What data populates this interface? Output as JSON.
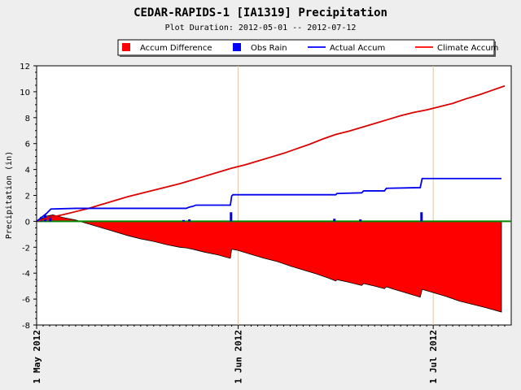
{
  "chart_data": {
    "type": "line",
    "title": "CEDAR-RAPIDS-1 [IA1319] Precipitation",
    "subtitle": "Plot Duration: 2012-05-01 -- 2012-07-12",
    "ylabel": "Precipitation (in)",
    "xlabel": "",
    "x_range_days": [
      0,
      73
    ],
    "ylim": [
      -8,
      12
    ],
    "yticks": [
      -8,
      -6,
      -4,
      -2,
      0,
      2,
      4,
      6,
      8,
      10,
      12
    ],
    "xticks": [
      {
        "day": 0,
        "label": "1 May 2012"
      },
      {
        "day": 31,
        "label": "1 Jun 2012"
      },
      {
        "day": 61,
        "label": "1 Jul 2012"
      }
    ],
    "legend": {
      "placement": "top-right",
      "entries": [
        {
          "name": "Accum Difference",
          "color": "#ff0000",
          "kind": "box"
        },
        {
          "name": "Obs Rain",
          "color": "#0000ff",
          "kind": "box"
        },
        {
          "name": "Actual Accum",
          "color": "#0000ff",
          "kind": "line"
        },
        {
          "name": "Climate Accum",
          "color": "#ff0000",
          "kind": "line"
        }
      ]
    },
    "series": [
      {
        "name": "Climate Accum",
        "color": "#dd0000",
        "points": [
          [
            0,
            0
          ],
          [
            2,
            0.3
          ],
          [
            4,
            0.5
          ],
          [
            6,
            0.75
          ],
          [
            8,
            1.0
          ],
          [
            10,
            1.3
          ],
          [
            12,
            1.6
          ],
          [
            14,
            1.9
          ],
          [
            16,
            2.15
          ],
          [
            18,
            2.4
          ],
          [
            20,
            2.65
          ],
          [
            22,
            2.9
          ],
          [
            24,
            3.2
          ],
          [
            26,
            3.5
          ],
          [
            28,
            3.8
          ],
          [
            30,
            4.1
          ],
          [
            32,
            4.35
          ],
          [
            34,
            4.65
          ],
          [
            36,
            4.95
          ],
          [
            38,
            5.25
          ],
          [
            40,
            5.6
          ],
          [
            42,
            5.95
          ],
          [
            44,
            6.35
          ],
          [
            46,
            6.7
          ],
          [
            48,
            6.95
          ],
          [
            50,
            7.25
          ],
          [
            52,
            7.55
          ],
          [
            54,
            7.85
          ],
          [
            56,
            8.15
          ],
          [
            58,
            8.4
          ],
          [
            60,
            8.6
          ],
          [
            62,
            8.85
          ],
          [
            64,
            9.1
          ],
          [
            66,
            9.45
          ],
          [
            68,
            9.75
          ],
          [
            70,
            10.1
          ],
          [
            72,
            10.45
          ]
        ]
      },
      {
        "name": "Actual Accum",
        "color": "#0000ee",
        "points": [
          [
            0,
            0
          ],
          [
            0.5,
            0.2
          ],
          [
            1.5,
            0.6
          ],
          [
            2.2,
            0.95
          ],
          [
            6,
            1.0
          ],
          [
            23,
            1.0
          ],
          [
            23.5,
            1.1
          ],
          [
            24,
            1.15
          ],
          [
            24.5,
            1.25
          ],
          [
            29.8,
            1.25
          ],
          [
            30,
            1.95
          ],
          [
            30.2,
            2.05
          ],
          [
            46,
            2.05
          ],
          [
            46.2,
            2.15
          ],
          [
            50,
            2.2
          ],
          [
            50.3,
            2.35
          ],
          [
            53.5,
            2.35
          ],
          [
            53.8,
            2.55
          ],
          [
            59,
            2.6
          ],
          [
            59.3,
            3.3
          ],
          [
            71.5,
            3.3
          ]
        ]
      },
      {
        "name": "Accum Difference",
        "color": "#ff0000",
        "points": [
          [
            0,
            0
          ],
          [
            1.5,
            0.4
          ],
          [
            2.5,
            0.5
          ],
          [
            4,
            0.3
          ],
          [
            6,
            0.1
          ],
          [
            8,
            -0.2
          ],
          [
            10,
            -0.5
          ],
          [
            12,
            -0.8
          ],
          [
            14,
            -1.1
          ],
          [
            16,
            -1.35
          ],
          [
            18,
            -1.55
          ],
          [
            20,
            -1.8
          ],
          [
            22,
            -2.0
          ],
          [
            23,
            -2.05
          ],
          [
            24,
            -2.15
          ],
          [
            26,
            -2.4
          ],
          [
            28,
            -2.6
          ],
          [
            29,
            -2.75
          ],
          [
            29.8,
            -2.85
          ],
          [
            30,
            -2.15
          ],
          [
            31,
            -2.25
          ],
          [
            33,
            -2.55
          ],
          [
            35,
            -2.85
          ],
          [
            37,
            -3.1
          ],
          [
            39,
            -3.45
          ],
          [
            41,
            -3.75
          ],
          [
            43,
            -4.05
          ],
          [
            45,
            -4.4
          ],
          [
            46,
            -4.6
          ],
          [
            46.2,
            -4.5
          ],
          [
            48,
            -4.7
          ],
          [
            50,
            -4.95
          ],
          [
            50.3,
            -4.8
          ],
          [
            52,
            -5.0
          ],
          [
            53.5,
            -5.2
          ],
          [
            53.8,
            -5.05
          ],
          [
            55,
            -5.25
          ],
          [
            57,
            -5.55
          ],
          [
            59,
            -5.85
          ],
          [
            59.3,
            -5.25
          ],
          [
            61,
            -5.5
          ],
          [
            63,
            -5.8
          ],
          [
            65,
            -6.15
          ],
          [
            67,
            -6.4
          ],
          [
            69,
            -6.65
          ],
          [
            71.5,
            -7.0
          ]
        ]
      },
      {
        "name": "Obs Rain",
        "color": "#0000cc",
        "bars": [
          [
            0.7,
            0.35
          ],
          [
            1.3,
            0.5
          ],
          [
            2.1,
            0.4
          ],
          [
            22.6,
            0.1
          ],
          [
            23.5,
            0.15
          ],
          [
            29.9,
            0.7
          ],
          [
            45.8,
            0.2
          ],
          [
            49.8,
            0.15
          ],
          [
            59.2,
            0.7
          ]
        ]
      }
    ]
  }
}
